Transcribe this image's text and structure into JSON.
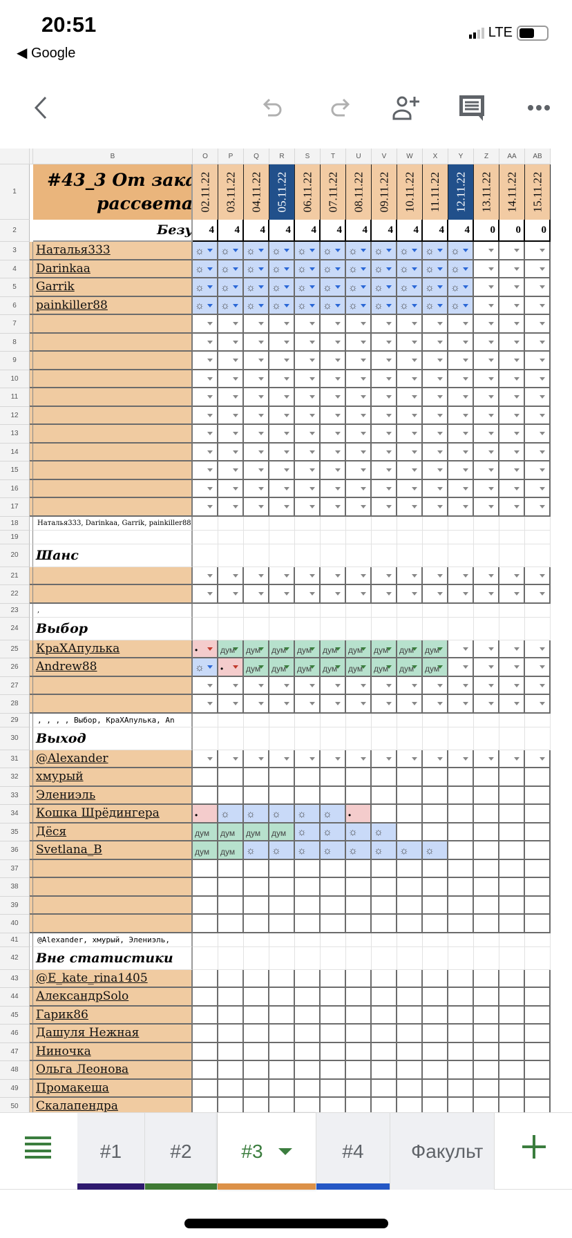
{
  "status_bar": {
    "time": "20:51",
    "back_app": "Google",
    "network": "LTE"
  },
  "toolbar": {
    "icons": [
      "back-icon",
      "undo-icon",
      "redo-icon",
      "add-person-icon",
      "comment-icon",
      "more-icon"
    ]
  },
  "sheet": {
    "corner_column_label": "B",
    "columns": [
      {
        "letter": "O",
        "date": "02.11.22",
        "count": "4",
        "highlight": false
      },
      {
        "letter": "P",
        "date": "03.11.22",
        "count": "4",
        "highlight": false
      },
      {
        "letter": "Q",
        "date": "04.11.22",
        "count": "4",
        "highlight": false
      },
      {
        "letter": "R",
        "date": "05.11.22",
        "count": "4",
        "highlight": true
      },
      {
        "letter": "S",
        "date": "06.11.22",
        "count": "4",
        "highlight": false
      },
      {
        "letter": "T",
        "date": "07.11.22",
        "count": "4",
        "highlight": false
      },
      {
        "letter": "U",
        "date": "08.11.22",
        "count": "4",
        "highlight": false
      },
      {
        "letter": "V",
        "date": "09.11.22",
        "count": "4",
        "highlight": false
      },
      {
        "letter": "W",
        "date": "10.11.22",
        "count": "4",
        "highlight": false
      },
      {
        "letter": "X",
        "date": "11.11.22",
        "count": "4",
        "highlight": false
      },
      {
        "letter": "Y",
        "date": "12.11.22",
        "count": "4",
        "highlight": true
      },
      {
        "letter": "Z",
        "date": "13.11.22",
        "count": "0",
        "highlight": false
      },
      {
        "letter": "AA",
        "date": "14.11.22",
        "count": "0",
        "highlight": false
      },
      {
        "letter": "AB",
        "date": "15.11.22",
        "count": "0",
        "highlight": false
      }
    ],
    "title_line1": "#43_3 От закат",
    "title_line2": "рассвета",
    "row2_label": "Безу",
    "colors": {
      "date_header": "#f2cba3",
      "title_bg": "#eab57c",
      "highlight": "#21508b",
      "name_bg": "#f0cba1",
      "sun_bg": "#c9daf8",
      "dot_bg": "#f4cccc",
      "dum_bg": "#b7e1cd"
    },
    "rows": [
      {
        "n": "3",
        "kind": "member",
        "name": "Наталья333",
        "dropdown": true,
        "cells": [
          "☼",
          "☼",
          "☼",
          "☼",
          "☼",
          "☼",
          "☼",
          "☼",
          "☼",
          "☼",
          "☼",
          "",
          "",
          ""
        ]
      },
      {
        "n": "4",
        "kind": "member",
        "name": "Darinkaa",
        "dropdown": true,
        "cells": [
          "☼",
          "☼",
          "☼",
          "☼",
          "☼",
          "☼",
          "☼",
          "☼",
          "☼",
          "☼",
          "☼",
          "",
          "",
          ""
        ]
      },
      {
        "n": "5",
        "kind": "member",
        "name": "Garrik",
        "dropdown": true,
        "cells": [
          "☼",
          "☼",
          "☼",
          "☼",
          "☼",
          "☼",
          "☼",
          "☼",
          "☼",
          "☼",
          "☼",
          "",
          "",
          ""
        ]
      },
      {
        "n": "6",
        "kind": "member",
        "name": "painkiller88",
        "dropdown": true,
        "cells": [
          "☼",
          "☼",
          "☼",
          "☼",
          "☼",
          "☼",
          "☼",
          "☼",
          "☼",
          "☼",
          "☼",
          "",
          "",
          ""
        ]
      },
      {
        "n": "7",
        "kind": "member",
        "name": "",
        "dropdown": true,
        "cells": []
      },
      {
        "n": "8",
        "kind": "member",
        "name": "",
        "dropdown": true,
        "cells": []
      },
      {
        "n": "9",
        "kind": "member",
        "name": "",
        "dropdown": true,
        "cells": []
      },
      {
        "n": "10",
        "kind": "member",
        "name": "",
        "dropdown": true,
        "cells": []
      },
      {
        "n": "11",
        "kind": "member",
        "name": "",
        "dropdown": true,
        "cells": []
      },
      {
        "n": "12",
        "kind": "member",
        "name": "",
        "dropdown": true,
        "cells": []
      },
      {
        "n": "13",
        "kind": "member",
        "name": "",
        "dropdown": true,
        "cells": []
      },
      {
        "n": "14",
        "kind": "member",
        "name": "",
        "dropdown": true,
        "cells": []
      },
      {
        "n": "15",
        "kind": "member",
        "name": "",
        "dropdown": true,
        "cells": []
      },
      {
        "n": "16",
        "kind": "member",
        "name": "",
        "dropdown": true,
        "cells": []
      },
      {
        "n": "17",
        "kind": "member",
        "name": "",
        "dropdown": true,
        "cells": []
      },
      {
        "n": "18",
        "kind": "summary",
        "name": "Наталья333, Darinkaa, Garrik, painkiller88, , , , ,"
      },
      {
        "n": "19",
        "kind": "blank",
        "name": ""
      },
      {
        "n": "20",
        "kind": "section",
        "name": "Шанс"
      },
      {
        "n": "21",
        "kind": "member",
        "name": "",
        "dropdown": true,
        "cells": []
      },
      {
        "n": "22",
        "kind": "member",
        "name": "",
        "dropdown": true,
        "cells": []
      },
      {
        "n": "23",
        "kind": "summary",
        "name": ","
      },
      {
        "n": "24",
        "kind": "section",
        "name": "Выбор"
      },
      {
        "n": "25",
        "kind": "member",
        "name": "КраХАпулька",
        "dropdown": true,
        "cells": [
          "•",
          "дум",
          "дум",
          "дум",
          "дум",
          "дум",
          "дум",
          "дум",
          "дум",
          "дум",
          "",
          "",
          "",
          ""
        ]
      },
      {
        "n": "26",
        "kind": "member",
        "name": "Andrew88",
        "dropdown": true,
        "cells": [
          "☼",
          "•",
          "дум",
          "дум",
          "дум",
          "дум",
          "дум",
          "дум",
          "дум",
          "дум",
          "",
          "",
          "",
          ""
        ]
      },
      {
        "n": "27",
        "kind": "member",
        "name": "",
        "dropdown": true,
        "cells": []
      },
      {
        "n": "28",
        "kind": "member",
        "name": "",
        "dropdown": true,
        "cells": []
      },
      {
        "n": "29",
        "kind": "summary-mono",
        "name": ", , , , Выбор, КраХАпулька, An"
      },
      {
        "n": "30",
        "kind": "section",
        "name": "Выход"
      },
      {
        "n": "31",
        "kind": "member",
        "name": "@Alexander",
        "dropdown": true,
        "cells": []
      },
      {
        "n": "32",
        "kind": "member",
        "name": "хмурый",
        "dropdown": false,
        "cells": []
      },
      {
        "n": "33",
        "kind": "member",
        "name": "Элениэль",
        "dropdown": false,
        "cells": []
      },
      {
        "n": "34",
        "kind": "member",
        "name": "Кошка Шрёдингера",
        "dropdown": false,
        "cells": [
          "•",
          "☼",
          "☼",
          "☼",
          "☼",
          "☼",
          "•",
          "",
          "",
          "",
          "",
          "",
          "",
          ""
        ]
      },
      {
        "n": "35",
        "kind": "member",
        "name": "Дёся",
        "dropdown": false,
        "cells": [
          "дум",
          "дум",
          "дум",
          "дум",
          "☼",
          "☼",
          "☼",
          "☼",
          "",
          "",
          "",
          "",
          "",
          ""
        ]
      },
      {
        "n": "36",
        "kind": "member",
        "name": "Svetlana_B",
        "dropdown": false,
        "cells": [
          "дум",
          "дум",
          "☼",
          "☼",
          "☼",
          "☼",
          "☼",
          "☼",
          "☼",
          "☼",
          "",
          "",
          "",
          ""
        ]
      },
      {
        "n": "37",
        "kind": "member",
        "name": "",
        "dropdown": false,
        "cells": []
      },
      {
        "n": "38",
        "kind": "member",
        "name": "",
        "dropdown": false,
        "cells": []
      },
      {
        "n": "39",
        "kind": "member",
        "name": "",
        "dropdown": false,
        "cells": []
      },
      {
        "n": "40",
        "kind": "member",
        "name": "",
        "dropdown": false,
        "cells": []
      },
      {
        "n": "41",
        "kind": "summary-mono",
        "name": "@Alexander, хмурый, Элениэль,"
      },
      {
        "n": "42",
        "kind": "section",
        "name": "Вне статистики"
      },
      {
        "n": "43",
        "kind": "member",
        "name": "@E_kate_rina1405",
        "dropdown": false,
        "cells": []
      },
      {
        "n": "44",
        "kind": "member",
        "name": "АлександрSolo",
        "dropdown": false,
        "cells": []
      },
      {
        "n": "45",
        "kind": "member",
        "name": "Гарик86",
        "dropdown": false,
        "cells": []
      },
      {
        "n": "46",
        "kind": "member",
        "name": "Дашуля Нежная",
        "dropdown": false,
        "cells": []
      },
      {
        "n": "47",
        "kind": "member",
        "name": "Ниночка",
        "dropdown": false,
        "cells": []
      },
      {
        "n": "48",
        "kind": "member",
        "name": "Ольга Леонова",
        "dropdown": false,
        "cells": []
      },
      {
        "n": "49",
        "kind": "member",
        "name": "Промакеша",
        "dropdown": false,
        "cells": []
      },
      {
        "n": "50",
        "kind": "member",
        "name": "Скалапендра",
        "dropdown": false,
        "cells": []
      }
    ]
  },
  "tabs": [
    {
      "label": "#1",
      "color": "#2e1a6e",
      "active": false
    },
    {
      "label": "#2",
      "color": "#3f7a34",
      "active": false
    },
    {
      "label": "#3",
      "color": "#dc9148",
      "active": true
    },
    {
      "label": "#4",
      "color": "#2457c5",
      "active": false
    },
    {
      "label": "Факульт",
      "color": "",
      "active": false
    }
  ],
  "accent": "#3b7d3e"
}
